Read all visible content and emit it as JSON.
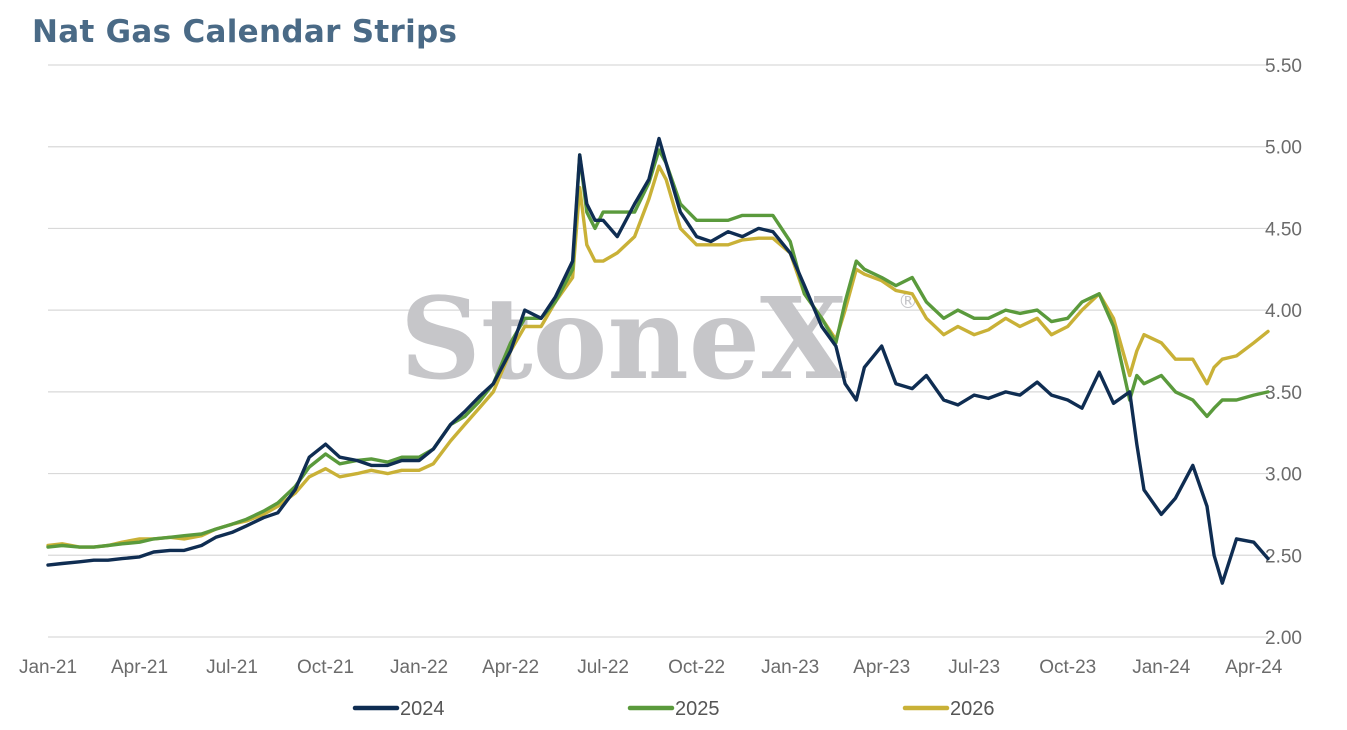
{
  "title": "Nat Gas Calendar Strips",
  "watermark": {
    "text": "StoneX",
    "mark": "®"
  },
  "colors": {
    "2024": "#0f2d52",
    "2025": "#5a9a3c",
    "2026": "#c9b137",
    "grid": "#d9d9d9",
    "title": "#4a6a86"
  },
  "chart_data": {
    "type": "line",
    "title": "Nat Gas Calendar Strips",
    "xlabel": "",
    "ylabel": "",
    "x_ticks": [
      "Jan-21",
      "Apr-21",
      "Jul-21",
      "Oct-21",
      "Jan-22",
      "Apr-22",
      "Jul-22",
      "Oct-22",
      "Jan-23",
      "Apr-23",
      "Jul-23",
      "Oct-23",
      "Jan-24",
      "Apr-24"
    ],
    "y_ticks": [
      "2.00",
      "2.50",
      "3.00",
      "3.50",
      "4.00",
      "4.50",
      "5.00",
      "5.50"
    ],
    "ylim": [
      2.0,
      5.5
    ],
    "y_axis_position": "right",
    "grid": true,
    "legend_position": "bottom",
    "x": [
      "2021-01-01",
      "2021-01-15",
      "2021-02-01",
      "2021-02-15",
      "2021-03-01",
      "2021-03-15",
      "2021-04-01",
      "2021-04-15",
      "2021-05-01",
      "2021-05-15",
      "2021-06-01",
      "2021-06-15",
      "2021-07-01",
      "2021-07-15",
      "2021-08-01",
      "2021-08-15",
      "2021-09-01",
      "2021-09-15",
      "2021-10-01",
      "2021-10-15",
      "2021-11-01",
      "2021-11-15",
      "2021-12-01",
      "2021-12-15",
      "2022-01-01",
      "2022-01-15",
      "2022-02-01",
      "2022-02-15",
      "2022-03-01",
      "2022-03-15",
      "2022-04-01",
      "2022-04-15",
      "2022-05-01",
      "2022-05-15",
      "2022-06-01",
      "2022-06-08",
      "2022-06-15",
      "2022-06-23",
      "2022-07-01",
      "2022-07-15",
      "2022-08-01",
      "2022-08-15",
      "2022-08-25",
      "2022-09-01",
      "2022-09-15",
      "2022-10-01",
      "2022-10-15",
      "2022-11-01",
      "2022-11-15",
      "2022-12-01",
      "2022-12-15",
      "2023-01-01",
      "2023-01-15",
      "2023-02-01",
      "2023-02-15",
      "2023-02-24",
      "2023-03-07",
      "2023-03-15",
      "2023-04-01",
      "2023-04-15",
      "2023-05-01",
      "2023-05-15",
      "2023-06-01",
      "2023-06-15",
      "2023-07-01",
      "2023-07-15",
      "2023-08-01",
      "2023-08-15",
      "2023-09-01",
      "2023-09-15",
      "2023-10-01",
      "2023-10-15",
      "2023-11-01",
      "2023-11-15",
      "2023-12-01",
      "2023-12-08",
      "2023-12-15",
      "2024-01-01",
      "2024-01-15",
      "2024-02-01",
      "2024-02-15",
      "2024-02-22",
      "2024-03-01",
      "2024-03-15",
      "2024-04-01",
      "2024-04-15"
    ],
    "series": [
      {
        "name": "2024",
        "color": "#0f2d52",
        "values": [
          2.44,
          2.45,
          2.46,
          2.47,
          2.47,
          2.48,
          2.49,
          2.52,
          2.53,
          2.53,
          2.56,
          2.61,
          2.64,
          2.68,
          2.73,
          2.76,
          2.9,
          3.1,
          3.18,
          3.1,
          3.08,
          3.05,
          3.05,
          3.08,
          3.08,
          3.15,
          3.3,
          3.38,
          3.47,
          3.55,
          3.75,
          4.0,
          3.95,
          4.08,
          4.3,
          4.95,
          4.65,
          4.55,
          4.55,
          4.45,
          4.65,
          4.8,
          5.05,
          4.9,
          4.6,
          4.45,
          4.42,
          4.48,
          4.45,
          4.5,
          4.48,
          4.35,
          4.15,
          3.9,
          3.78,
          3.55,
          3.45,
          3.65,
          3.78,
          3.55,
          3.52,
          3.6,
          3.45,
          3.42,
          3.48,
          3.46,
          3.5,
          3.48,
          3.56,
          3.48,
          3.45,
          3.4,
          3.62,
          3.43,
          3.5,
          3.18,
          2.9,
          2.75,
          2.85,
          3.05,
          2.8,
          2.5,
          2.33,
          2.6,
          2.58,
          2.48
        ]
      },
      {
        "name": "2025",
        "color": "#5a9a3c",
        "values": [
          2.55,
          2.56,
          2.55,
          2.55,
          2.56,
          2.57,
          2.58,
          2.6,
          2.61,
          2.62,
          2.63,
          2.66,
          2.69,
          2.72,
          2.77,
          2.82,
          2.92,
          3.04,
          3.12,
          3.06,
          3.08,
          3.09,
          3.07,
          3.1,
          3.1,
          3.15,
          3.3,
          3.35,
          3.44,
          3.55,
          3.8,
          3.95,
          3.95,
          4.05,
          4.25,
          4.95,
          4.6,
          4.5,
          4.6,
          4.6,
          4.6,
          4.78,
          4.98,
          4.9,
          4.65,
          4.55,
          4.55,
          4.55,
          4.58,
          4.58,
          4.58,
          4.42,
          4.1,
          3.95,
          3.8,
          4.05,
          4.3,
          4.25,
          4.2,
          4.15,
          4.2,
          4.05,
          3.95,
          4.0,
          3.95,
          3.95,
          4.0,
          3.98,
          4.0,
          3.93,
          3.95,
          4.05,
          4.1,
          3.9,
          3.45,
          3.6,
          3.55,
          3.6,
          3.5,
          3.45,
          3.35,
          3.4,
          3.45,
          3.45,
          3.48,
          3.5
        ]
      },
      {
        "name": "2026",
        "color": "#c9b137",
        "values": [
          2.56,
          2.57,
          2.55,
          2.55,
          2.56,
          2.58,
          2.6,
          2.6,
          2.61,
          2.6,
          2.62,
          2.66,
          2.69,
          2.71,
          2.75,
          2.8,
          2.88,
          2.98,
          3.03,
          2.98,
          3.0,
          3.02,
          3.0,
          3.02,
          3.02,
          3.06,
          3.2,
          3.3,
          3.4,
          3.5,
          3.75,
          3.9,
          3.9,
          4.05,
          4.2,
          4.75,
          4.4,
          4.3,
          4.3,
          4.35,
          4.45,
          4.68,
          4.88,
          4.8,
          4.5,
          4.4,
          4.4,
          4.4,
          4.43,
          4.44,
          4.44,
          4.35,
          4.1,
          3.95,
          3.82,
          4.0,
          4.25,
          4.22,
          4.18,
          4.12,
          4.1,
          3.95,
          3.85,
          3.9,
          3.85,
          3.88,
          3.95,
          3.9,
          3.95,
          3.85,
          3.9,
          4.0,
          4.1,
          3.95,
          3.6,
          3.75,
          3.85,
          3.8,
          3.7,
          3.7,
          3.55,
          3.65,
          3.7,
          3.72,
          3.8,
          3.87
        ]
      }
    ]
  }
}
